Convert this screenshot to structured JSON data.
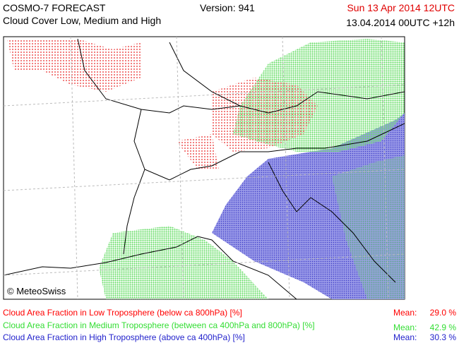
{
  "header": {
    "title": "COSMO-7 FORECAST",
    "subtitle": "Cloud Cover Low, Medium and High",
    "version": "Version: 941",
    "valid_time": "Sun 13 Apr 2014 12UTC",
    "run_time": "13.04.2014 00UTC +12h"
  },
  "map": {
    "credit": "© MeteoSwiss"
  },
  "legend": [
    {
      "label": "Cloud Area Fraction in Low Troposphere (below ca 800hPa) [%]",
      "mean_label": "Mean:",
      "mean": "29.0 %",
      "color": "#ff0000"
    },
    {
      "label": "Cloud Area Fraction in Medium Troposphere (between ca 400hPa and 800hPa) [%]",
      "mean_label": "Mean:",
      "mean": "42.9 %",
      "color": "#33dd33"
    },
    {
      "label": "Cloud Area Fraction in High Troposphere (above ca 400hPa) [%]",
      "mean_label": "Mean:",
      "mean": "30.3 %",
      "color": "#2222cc"
    }
  ]
}
